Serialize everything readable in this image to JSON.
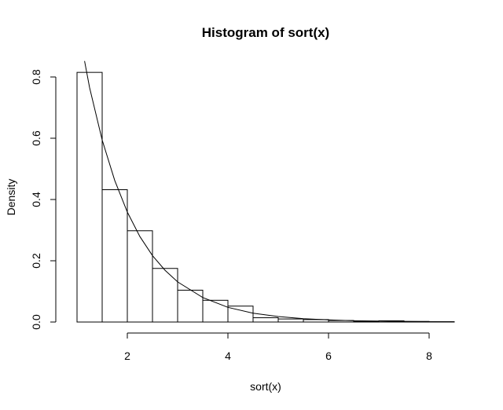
{
  "chart_data": {
    "type": "bar",
    "title": "Histogram of sort(x)",
    "xlabel": "sort(x)",
    "ylabel": "Density",
    "xlim": [
      1.0,
      8.5
    ],
    "ylim": [
      0.0,
      0.8
    ],
    "xticks": [
      2,
      4,
      6,
      8
    ],
    "yticks": [
      0.0,
      0.2,
      0.4,
      0.6,
      0.8
    ],
    "ytick_labels": [
      "0.0",
      "0.2",
      "0.4",
      "0.6",
      "0.8"
    ],
    "bin_edges": [
      1.0,
      1.5,
      2.0,
      2.5,
      3.0,
      3.5,
      4.0,
      4.5,
      5.0,
      5.5,
      6.0,
      6.5,
      7.0,
      7.5,
      8.0,
      8.5
    ],
    "values": [
      0.815,
      0.432,
      0.298,
      0.175,
      0.104,
      0.071,
      0.052,
      0.014,
      0.01,
      0.008,
      0.005,
      0.002,
      0.004,
      0.002,
      0.001
    ],
    "curve": {
      "type": "density",
      "x": [
        1.15,
        1.25,
        1.5,
        1.75,
        2.0,
        2.25,
        2.5,
        2.75,
        3.0,
        3.5,
        4.0,
        4.5,
        5.0,
        5.5,
        6.0,
        6.5,
        7.0,
        7.5,
        8.0,
        8.5
      ],
      "y": [
        0.852,
        0.765,
        0.594,
        0.462,
        0.359,
        0.279,
        0.217,
        0.169,
        0.131,
        0.08,
        0.048,
        0.029,
        0.018,
        0.011,
        0.007,
        0.004,
        0.003,
        0.002,
        0.001,
        0.0006
      ]
    },
    "grid": false,
    "legend": "none"
  }
}
